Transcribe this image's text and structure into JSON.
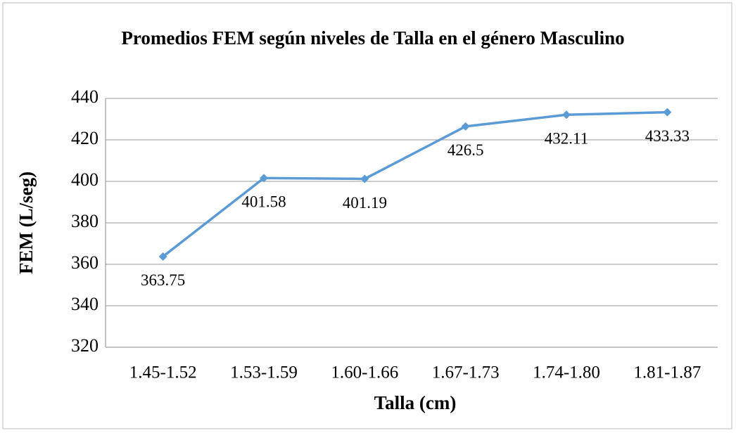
{
  "chart_data": {
    "type": "line",
    "title": "Promedios FEM según niveles de Talla en el género Masculino",
    "xlabel": "Talla (cm)",
    "ylabel": "FEM (L/seg)",
    "categories": [
      "1.45-1.52",
      "1.53-1.59",
      "1.60-1.66",
      "1.67-1.73",
      "1.74-1.80",
      "1.81-1.87"
    ],
    "values": [
      363.75,
      401.58,
      401.19,
      426.5,
      432.11,
      433.33
    ],
    "color": "#5b9bd5",
    "ylim": [
      320,
      440
    ],
    "yticks": [
      320,
      340,
      360,
      380,
      400,
      420,
      440
    ],
    "grid": true
  }
}
